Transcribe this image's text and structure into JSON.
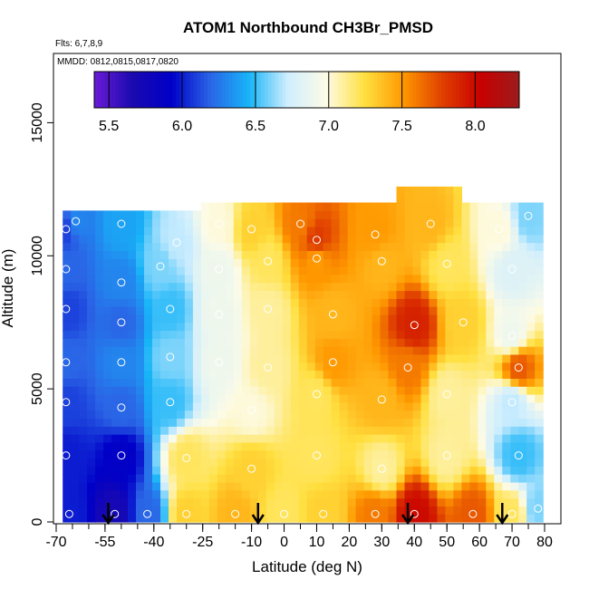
{
  "chart_data": {
    "type": "heatmap",
    "title": "ATOM1 Northbound CH3Br_PMSD",
    "subtitle_flights": "Flts: 6,7,8,9",
    "subtitle_dates": "MMDD: 0812,0815,0817,0820",
    "xlabel": "Latitude (deg N)",
    "ylabel": "Altitude (m)",
    "xlim": [
      -70,
      80
    ],
    "ylim": [
      0,
      17500
    ],
    "x_ticks": [
      -70,
      -55,
      -40,
      -25,
      -10,
      0,
      10,
      20,
      30,
      40,
      50,
      60,
      70,
      80
    ],
    "x_tick_labels": [
      "-70",
      "-55",
      "-40",
      "-25",
      "-10",
      "0",
      "10",
      "20",
      "30",
      "40",
      "50",
      "60",
      "70",
      "80"
    ],
    "y_ticks": [
      0,
      5000,
      10000,
      15000
    ],
    "y_tick_labels": [
      "0",
      "5000",
      "10000",
      "15000"
    ],
    "colorbar": {
      "range": [
        5.4,
        8.3
      ],
      "ticks": [
        5.5,
        6.0,
        6.5,
        7.0,
        7.5,
        8.0
      ],
      "tick_labels": [
        "5.5",
        "6.0",
        "6.5",
        "7.0",
        "7.5",
        "8.0"
      ],
      "colors": [
        "#6a1bd6",
        "#1a0ab0",
        "#0000c8",
        "#2a64e6",
        "#18b4f8",
        "#cfeefe",
        "#fdfbe6",
        "#ffe040",
        "#ff9800",
        "#e04000",
        "#c80000",
        "#9c1c1c"
      ]
    },
    "profile_arrows_lat": [
      -54,
      -8,
      38,
      67
    ],
    "observations": [
      {
        "lat": -67,
        "alt": 11000,
        "value": 6.1
      },
      {
        "lat": -64,
        "alt": 11300,
        "value": 6.3
      },
      {
        "lat": -50,
        "alt": 11200,
        "value": 6.4
      },
      {
        "lat": -33,
        "alt": 10500,
        "value": 6.7
      },
      {
        "lat": -20,
        "alt": 11200,
        "value": 7.0
      },
      {
        "lat": -10,
        "alt": 11000,
        "value": 7.3
      },
      {
        "lat": 5,
        "alt": 11200,
        "value": 7.6
      },
      {
        "lat": 10,
        "alt": 10600,
        "value": 7.8
      },
      {
        "lat": 28,
        "alt": 10800,
        "value": 7.5
      },
      {
        "lat": 45,
        "alt": 11200,
        "value": 7.4
      },
      {
        "lat": 66,
        "alt": 11000,
        "value": 7.0
      },
      {
        "lat": 75,
        "alt": 11500,
        "value": 6.6
      },
      {
        "lat": -67,
        "alt": 9500,
        "value": 6.2
      },
      {
        "lat": -50,
        "alt": 9000,
        "value": 6.3
      },
      {
        "lat": -38,
        "alt": 9600,
        "value": 6.6
      },
      {
        "lat": -20,
        "alt": 9500,
        "value": 6.9
      },
      {
        "lat": -5,
        "alt": 9800,
        "value": 7.2
      },
      {
        "lat": 10,
        "alt": 9900,
        "value": 7.5
      },
      {
        "lat": 30,
        "alt": 9800,
        "value": 7.4
      },
      {
        "lat": 50,
        "alt": 9700,
        "value": 7.2
      },
      {
        "lat": 70,
        "alt": 9500,
        "value": 6.8
      },
      {
        "lat": -67,
        "alt": 8000,
        "value": 6.1
      },
      {
        "lat": -50,
        "alt": 7500,
        "value": 6.2
      },
      {
        "lat": -35,
        "alt": 8000,
        "value": 6.5
      },
      {
        "lat": -20,
        "alt": 7800,
        "value": 6.9
      },
      {
        "lat": -5,
        "alt": 8000,
        "value": 7.1
      },
      {
        "lat": 15,
        "alt": 7800,
        "value": 7.4
      },
      {
        "lat": 40,
        "alt": 7400,
        "value": 7.9
      },
      {
        "lat": 55,
        "alt": 7500,
        "value": 7.3
      },
      {
        "lat": 70,
        "alt": 7000,
        "value": 6.9
      },
      {
        "lat": -67,
        "alt": 6000,
        "value": 6.2
      },
      {
        "lat": -50,
        "alt": 6000,
        "value": 6.3
      },
      {
        "lat": -35,
        "alt": 6200,
        "value": 6.6
      },
      {
        "lat": -20,
        "alt": 6000,
        "value": 6.9
      },
      {
        "lat": -5,
        "alt": 5800,
        "value": 7.1
      },
      {
        "lat": 15,
        "alt": 6000,
        "value": 7.5
      },
      {
        "lat": 38,
        "alt": 5800,
        "value": 7.6
      },
      {
        "lat": 72,
        "alt": 5800,
        "value": 7.7
      },
      {
        "lat": -67,
        "alt": 4500,
        "value": 6.1
      },
      {
        "lat": -50,
        "alt": 4300,
        "value": 6.2
      },
      {
        "lat": -35,
        "alt": 4500,
        "value": 6.5
      },
      {
        "lat": -10,
        "alt": 4200,
        "value": 7.0
      },
      {
        "lat": 10,
        "alt": 4800,
        "value": 7.2
      },
      {
        "lat": 30,
        "alt": 4600,
        "value": 7.4
      },
      {
        "lat": 50,
        "alt": 4800,
        "value": 7.1
      },
      {
        "lat": 70,
        "alt": 4500,
        "value": 6.7
      },
      {
        "lat": -67,
        "alt": 2500,
        "value": 6.0
      },
      {
        "lat": -50,
        "alt": 2500,
        "value": 5.9
      },
      {
        "lat": -30,
        "alt": 2400,
        "value": 7.2
      },
      {
        "lat": -10,
        "alt": 2000,
        "value": 7.3
      },
      {
        "lat": 10,
        "alt": 2500,
        "value": 7.2
      },
      {
        "lat": 30,
        "alt": 2000,
        "value": 7.1
      },
      {
        "lat": 50,
        "alt": 2500,
        "value": 7.1
      },
      {
        "lat": 72,
        "alt": 2500,
        "value": 6.5
      },
      {
        "lat": -66,
        "alt": 300,
        "value": 6.0
      },
      {
        "lat": -52,
        "alt": 300,
        "value": 5.7
      },
      {
        "lat": -42,
        "alt": 300,
        "value": 6.2
      },
      {
        "lat": -30,
        "alt": 300,
        "value": 7.3
      },
      {
        "lat": -15,
        "alt": 300,
        "value": 7.4
      },
      {
        "lat": 0,
        "alt": 300,
        "value": 7.2
      },
      {
        "lat": 12,
        "alt": 300,
        "value": 7.3
      },
      {
        "lat": 28,
        "alt": 300,
        "value": 7.6
      },
      {
        "lat": 40,
        "alt": 300,
        "value": 8.0
      },
      {
        "lat": 58,
        "alt": 300,
        "value": 7.7
      },
      {
        "lat": 70,
        "alt": 300,
        "value": 7.2
      },
      {
        "lat": 78,
        "alt": 500,
        "value": 6.6
      }
    ]
  }
}
